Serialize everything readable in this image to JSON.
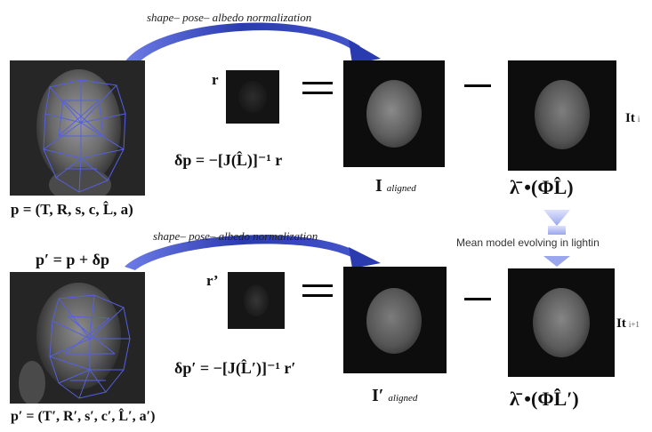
{
  "top_row": {
    "normalization_label": "shape– pose– albedo  normalization",
    "residual_symbol": "r",
    "update_equation": "δp = −[J(L̂)]⁻¹ r",
    "aligned_label": "I",
    "aligned_subscript": "aligned",
    "model_label": "λ̄ •(ΦL̂)",
    "param_label": "p = (T, R, s, c, L̂, a)",
    "iteration_label": "It",
    "iteration_subscript": "i"
  },
  "middle": {
    "update_label": "p′ = p + δp",
    "mean_model_label": "Mean model evolving in lightin"
  },
  "bottom_row": {
    "normalization_label": "shape– pose– albedo  normalization",
    "residual_symbol": "r’",
    "update_equation": "δp′ = −[J(L̂′)]⁻¹ r′",
    "aligned_label": "I′",
    "aligned_subscript": "aligned",
    "model_label": "λ̄ •(ΦL̂′)",
    "param_label": "p′ = (T′, R′, s′, c′, L̂′, a′)",
    "iteration_label": "It",
    "iteration_subscript": "i+1"
  },
  "colors": {
    "arrow": "#3a4fbf",
    "mesh": "#5560e0",
    "mean_arrow": "#aab4f0",
    "panel_bg": "#0d0d0d"
  }
}
